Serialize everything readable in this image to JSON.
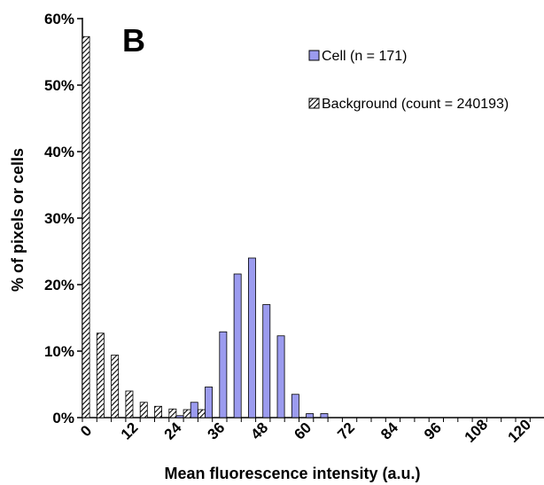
{
  "chart_data": {
    "type": "bar",
    "panel_label": "B",
    "xlabel": "Mean fluorescence intensity (a.u.)",
    "ylabel": "% of pixels or cells",
    "ylim": [
      0,
      60
    ],
    "yticks": [
      "0%",
      "10%",
      "20%",
      "30%",
      "40%",
      "50%",
      "60%"
    ],
    "xticks": [
      "0",
      "12",
      "24",
      "36",
      "48",
      "60",
      "72",
      "84",
      "96",
      "108",
      "120"
    ],
    "legend_position": "top-right",
    "bin_width": 4,
    "series": [
      {
        "name": "Cell (n = 171)",
        "style": "solid",
        "color": "#9b9bef",
        "values": [
          0,
          0,
          0,
          0,
          0,
          0,
          0.3,
          2.3,
          4.6,
          12.9,
          21.6,
          24.0,
          17.0,
          12.3,
          3.5,
          0.6,
          0.6,
          0,
          0,
          0,
          0,
          0,
          0,
          0,
          0,
          0,
          0,
          0,
          0,
          0,
          0,
          0
        ]
      },
      {
        "name": "Background (count = 240193)",
        "style": "hatched",
        "color": "#000000",
        "values": [
          57.3,
          12.7,
          9.4,
          4.0,
          2.3,
          1.7,
          1.3,
          1.2,
          1.2,
          0,
          0,
          0,
          0,
          0,
          0,
          0,
          0,
          0,
          0,
          0,
          0,
          0,
          0,
          0,
          0,
          0,
          0,
          0,
          0,
          0,
          0,
          0
        ]
      }
    ]
  }
}
